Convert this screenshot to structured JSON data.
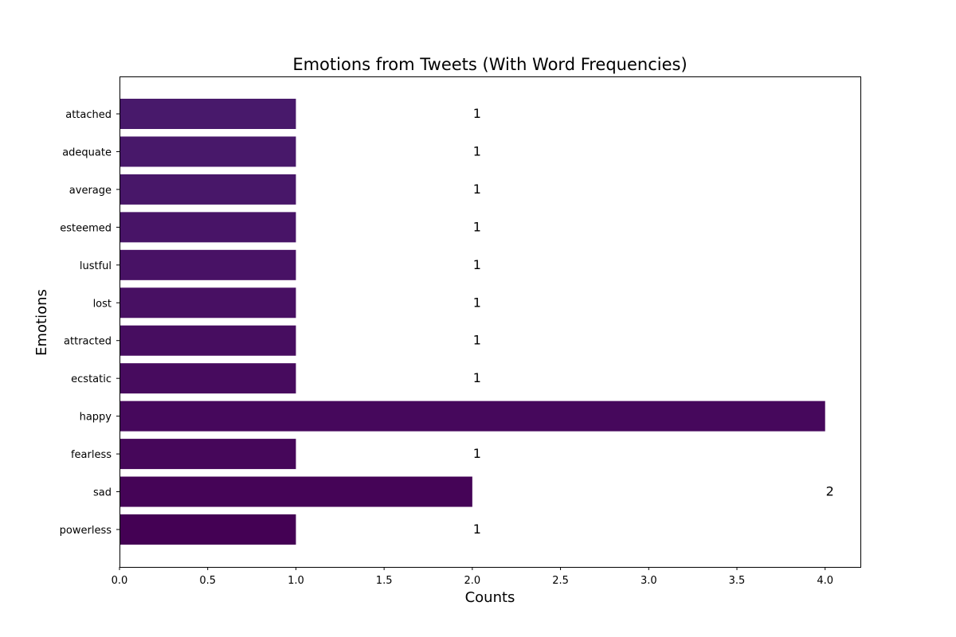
{
  "chart_data": {
    "type": "bar",
    "orientation": "horizontal",
    "title": "Emotions from Tweets (With Word Frequencies)",
    "xlabel": "Counts",
    "ylabel": "Emotions",
    "xlim": [
      0,
      4.2
    ],
    "xticks": [
      "0.0",
      "0.5",
      "1.0",
      "1.5",
      "2.0",
      "2.5",
      "3.0",
      "3.5",
      "4.0"
    ],
    "grid": false,
    "legend": "none",
    "categories": [
      "powerless",
      "sad",
      "fearless",
      "happy",
      "ecstatic",
      "attracted",
      "lost",
      "lustful",
      "esteemed",
      "average",
      "adequate",
      "attached"
    ],
    "values": [
      1,
      2,
      1,
      4,
      1,
      1,
      1,
      1,
      1,
      1,
      1,
      1
    ],
    "data_labels": [
      "1",
      "2",
      "1",
      "",
      "1",
      "1",
      "1",
      "1",
      "1",
      "1",
      "1",
      "1"
    ],
    "colors": [
      "#440154",
      "#450457",
      "#46075a",
      "#46085c",
      "#470b5e",
      "#470d60",
      "#481063",
      "#481265",
      "#481467",
      "#481769",
      "#48186a",
      "#48196b"
    ]
  }
}
